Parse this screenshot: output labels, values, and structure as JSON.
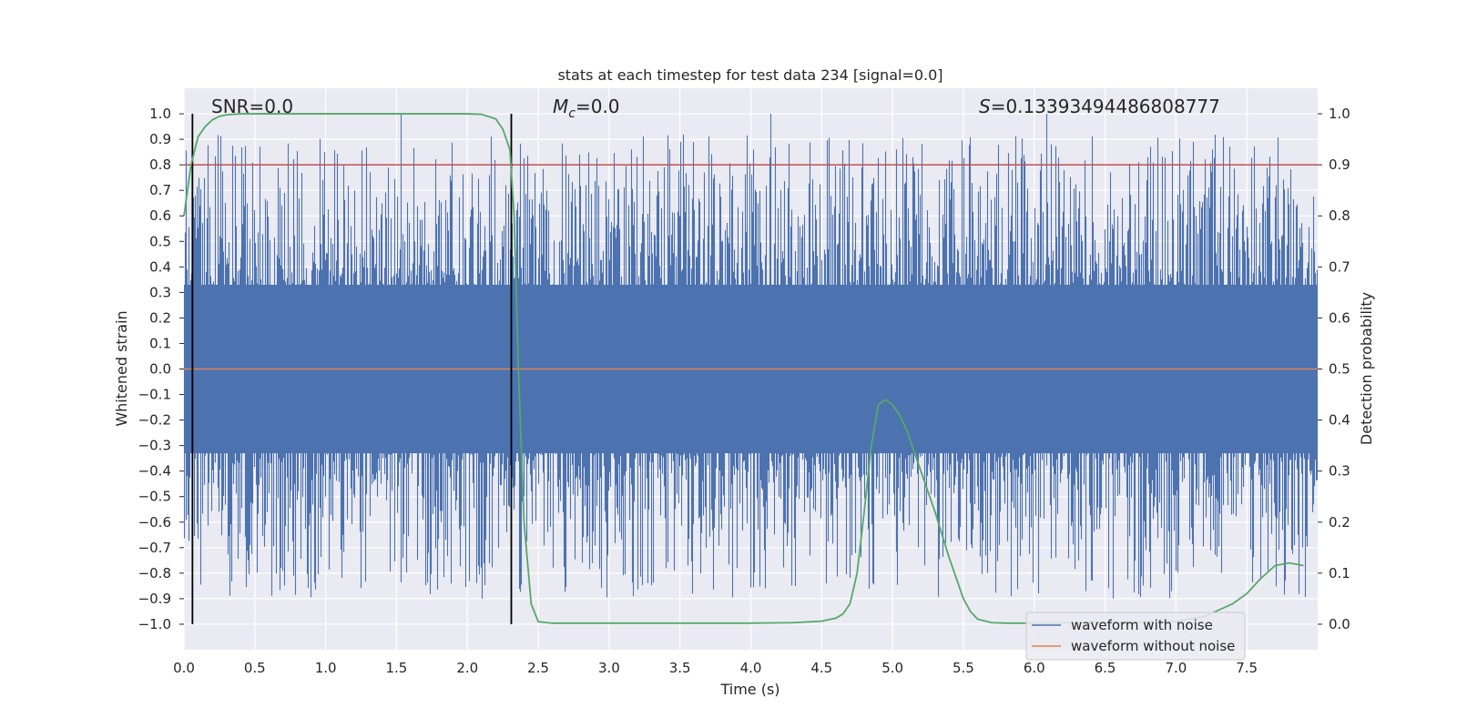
{
  "chart_data": {
    "type": "line",
    "title": "stats at each timestep for test data 234 [signal=0.0]",
    "xlabel": "Time (s)",
    "ylabel_left": "Whitened strain",
    "ylabel_right": "Detection probability",
    "xlim": [
      0.0,
      8.0
    ],
    "ylim_left": [
      -1.1,
      1.1
    ],
    "ylim_right": [
      -0.05,
      1.05
    ],
    "x_ticks": [
      "0.0",
      "0.5",
      "1.0",
      "1.5",
      "2.0",
      "2.5",
      "3.0",
      "3.5",
      "4.0",
      "4.5",
      "5.0",
      "5.5",
      "6.0",
      "6.5",
      "7.0",
      "7.5"
    ],
    "y_ticks_left": [
      "1.0",
      "0.9",
      "0.8",
      "0.7",
      "0.6",
      "0.5",
      "0.4",
      "0.3",
      "0.2",
      "0.1",
      "0.0",
      "−0.1",
      "−0.2",
      "−0.3",
      "−0.4",
      "−0.5",
      "−0.6",
      "−0.7",
      "−0.8",
      "−0.9",
      "−1.0"
    ],
    "y_ticks_right": [
      "1.0",
      "0.9",
      "0.8",
      "0.7",
      "0.6",
      "0.5",
      "0.4",
      "0.3",
      "0.2",
      "0.1",
      "0.0"
    ],
    "annotations": {
      "snr": "SNR=0.0",
      "mc_symbol": "M",
      "mc_sub": "c",
      "mc_value": "=0.0",
      "s_symbol": "S",
      "s_value": "=0.13393494486808777"
    },
    "threshold": 0.9,
    "vertical_lines": [
      0.06,
      2.31
    ],
    "legend": [
      {
        "label": "waveform with noise",
        "color": "#4C72B0"
      },
      {
        "label": "waveform without noise",
        "color": "#DD8452"
      }
    ],
    "series": [
      {
        "name": "waveform with noise",
        "color": "#4C72B0",
        "style": "noise",
        "axis": "left",
        "core_amplitude": 0.33,
        "max": 1.0,
        "min": -0.99
      },
      {
        "name": "waveform without noise",
        "color": "#DD8452",
        "axis": "left",
        "x": [
          0.0,
          8.0
        ],
        "y": [
          0.0,
          0.0
        ]
      },
      {
        "name": "detection probability",
        "color": "#55A868",
        "axis": "right",
        "x": [
          0.0,
          0.05,
          0.1,
          0.15,
          0.2,
          0.25,
          0.3,
          0.35,
          0.4,
          0.5,
          1.0,
          1.5,
          2.0,
          2.1,
          2.2,
          2.25,
          2.3,
          2.33,
          2.36,
          2.4,
          2.45,
          2.5,
          2.6,
          3.0,
          4.0,
          4.3,
          4.5,
          4.6,
          4.65,
          4.7,
          4.75,
          4.8,
          4.85,
          4.9,
          4.95,
          5.0,
          5.05,
          5.1,
          5.15,
          5.2,
          5.3,
          5.4,
          5.5,
          5.55,
          5.6,
          5.7,
          5.8,
          6.0,
          6.5,
          7.0,
          7.2,
          7.4,
          7.5,
          7.6,
          7.7,
          7.8,
          7.9
        ],
        "y": [
          0.8,
          0.9,
          0.955,
          0.975,
          0.988,
          0.995,
          0.998,
          0.999,
          1.0,
          1.0,
          1.0,
          1.0,
          1.0,
          0.999,
          0.99,
          0.97,
          0.93,
          0.8,
          0.5,
          0.2,
          0.04,
          0.005,
          0.002,
          0.002,
          0.002,
          0.003,
          0.006,
          0.012,
          0.02,
          0.04,
          0.1,
          0.22,
          0.35,
          0.43,
          0.44,
          0.43,
          0.41,
          0.38,
          0.34,
          0.3,
          0.22,
          0.13,
          0.05,
          0.025,
          0.01,
          0.003,
          0.002,
          0.002,
          0.003,
          0.005,
          0.015,
          0.04,
          0.06,
          0.09,
          0.115,
          0.12,
          0.115
        ]
      }
    ]
  }
}
